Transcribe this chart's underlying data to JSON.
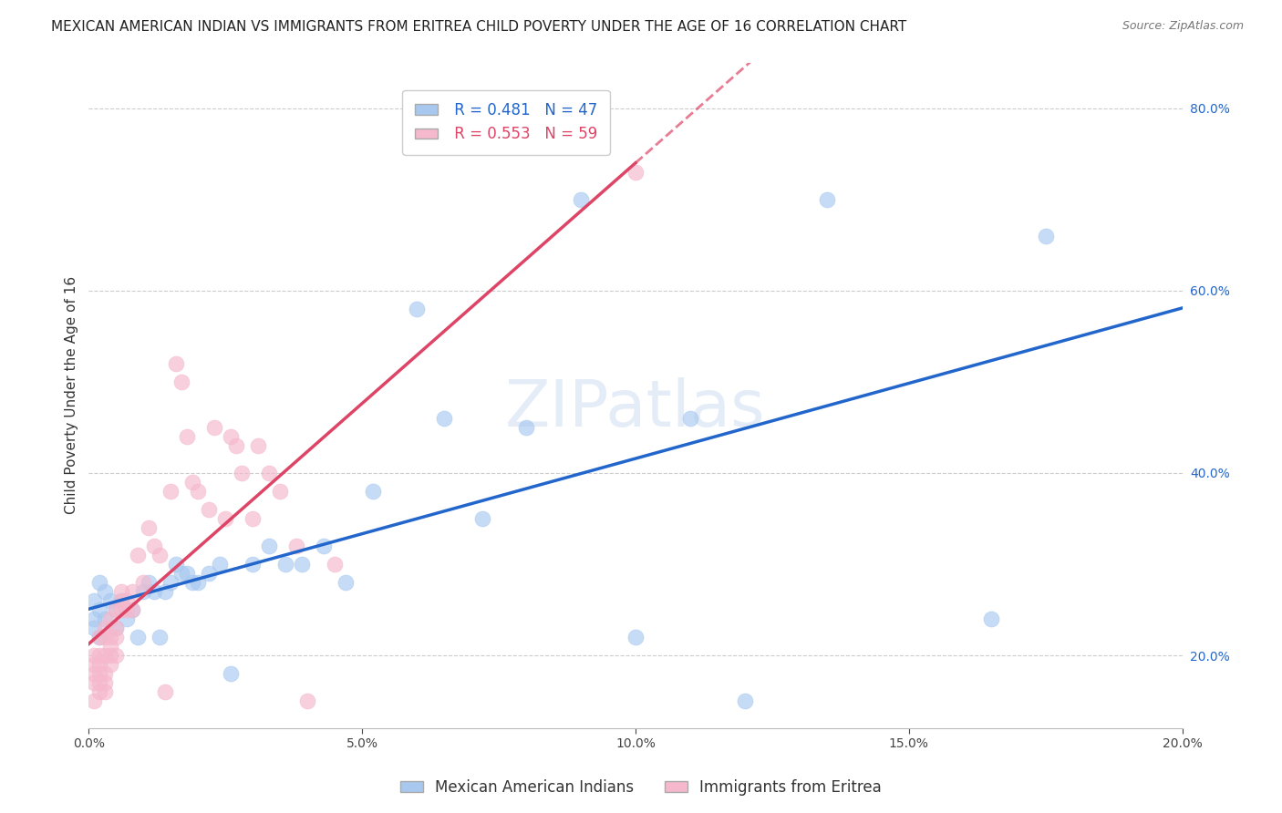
{
  "title": "MEXICAN AMERICAN INDIAN VS IMMIGRANTS FROM ERITREA CHILD POVERTY UNDER THE AGE OF 16 CORRELATION CHART",
  "source": "Source: ZipAtlas.com",
  "ylabel": "Child Poverty Under the Age of 16",
  "xlabel": "",
  "watermark": "ZIPatlas",
  "blue_R": 0.481,
  "blue_N": 47,
  "pink_R": 0.553,
  "pink_N": 59,
  "legend_blue": "Mexican American Indians",
  "legend_pink": "Immigrants from Eritrea",
  "xlim": [
    0.0,
    0.2
  ],
  "ylim": [
    0.12,
    0.85
  ],
  "xticks": [
    0.0,
    0.05,
    0.1,
    0.15,
    0.2
  ],
  "yticks_left": [],
  "yticks_right": [
    0.2,
    0.4,
    0.6,
    0.8
  ],
  "blue_scatter_x": [
    0.001,
    0.001,
    0.001,
    0.002,
    0.002,
    0.002,
    0.003,
    0.003,
    0.004,
    0.005,
    0.005,
    0.006,
    0.007,
    0.008,
    0.009,
    0.01,
    0.011,
    0.012,
    0.013,
    0.014,
    0.015,
    0.016,
    0.017,
    0.018,
    0.019,
    0.02,
    0.022,
    0.024,
    0.026,
    0.03,
    0.033,
    0.036,
    0.039,
    0.043,
    0.047,
    0.052,
    0.06,
    0.065,
    0.072,
    0.08,
    0.09,
    0.1,
    0.11,
    0.12,
    0.135,
    0.165,
    0.175
  ],
  "blue_scatter_y": [
    0.24,
    0.26,
    0.23,
    0.25,
    0.22,
    0.28,
    0.27,
    0.24,
    0.26,
    0.25,
    0.23,
    0.26,
    0.24,
    0.25,
    0.22,
    0.27,
    0.28,
    0.27,
    0.22,
    0.27,
    0.28,
    0.3,
    0.29,
    0.29,
    0.28,
    0.28,
    0.29,
    0.3,
    0.18,
    0.3,
    0.32,
    0.3,
    0.3,
    0.32,
    0.28,
    0.38,
    0.58,
    0.46,
    0.35,
    0.45,
    0.7,
    0.22,
    0.46,
    0.15,
    0.7,
    0.24,
    0.66
  ],
  "pink_scatter_x": [
    0.001,
    0.001,
    0.001,
    0.001,
    0.001,
    0.002,
    0.002,
    0.002,
    0.002,
    0.002,
    0.002,
    0.003,
    0.003,
    0.003,
    0.003,
    0.003,
    0.003,
    0.004,
    0.004,
    0.004,
    0.004,
    0.004,
    0.005,
    0.005,
    0.005,
    0.005,
    0.006,
    0.006,
    0.006,
    0.007,
    0.007,
    0.008,
    0.008,
    0.009,
    0.01,
    0.011,
    0.012,
    0.013,
    0.014,
    0.015,
    0.016,
    0.017,
    0.018,
    0.019,
    0.02,
    0.022,
    0.023,
    0.025,
    0.026,
    0.027,
    0.028,
    0.03,
    0.031,
    0.033,
    0.035,
    0.038,
    0.04,
    0.045,
    0.1
  ],
  "pink_scatter_y": [
    0.2,
    0.18,
    0.17,
    0.19,
    0.15,
    0.22,
    0.2,
    0.18,
    0.17,
    0.19,
    0.16,
    0.23,
    0.22,
    0.2,
    0.18,
    0.17,
    0.16,
    0.24,
    0.22,
    0.21,
    0.2,
    0.19,
    0.25,
    0.23,
    0.22,
    0.2,
    0.27,
    0.26,
    0.25,
    0.26,
    0.25,
    0.27,
    0.25,
    0.31,
    0.28,
    0.34,
    0.32,
    0.31,
    0.16,
    0.38,
    0.52,
    0.5,
    0.44,
    0.39,
    0.38,
    0.36,
    0.45,
    0.35,
    0.44,
    0.43,
    0.4,
    0.35,
    0.43,
    0.4,
    0.38,
    0.32,
    0.15,
    0.3,
    0.73
  ],
  "blue_color": "#a8c8f0",
  "pink_color": "#f5b8cc",
  "blue_line_color": "#2266cc",
  "pink_line_color": "#dd4466",
  "grid_color": "#cccccc",
  "background_color": "#ffffff",
  "title_fontsize": 11,
  "axis_label_fontsize": 11,
  "tick_fontsize": 10,
  "legend_fontsize": 12
}
